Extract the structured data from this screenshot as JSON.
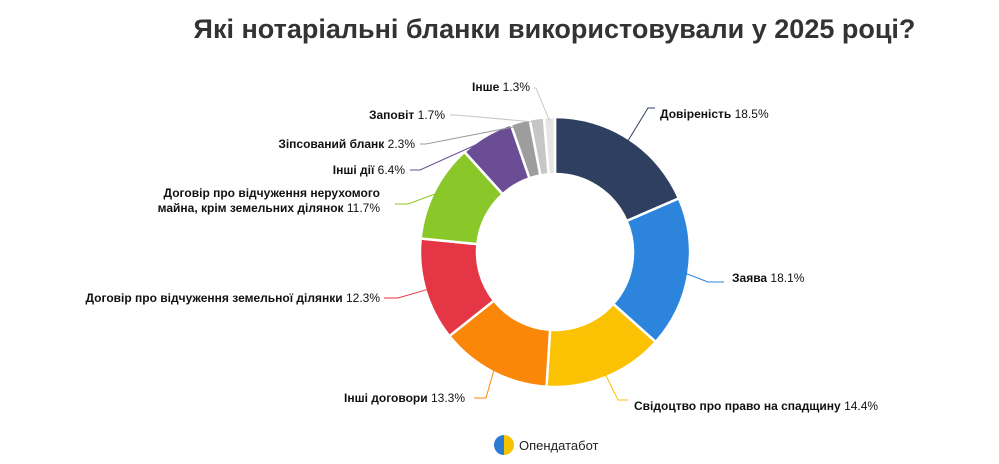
{
  "title": "Які нотаріальні бланки використовували у 2025 році?",
  "brand": "Опендатабот",
  "chart_data": {
    "type": "pie",
    "variant": "donut",
    "title": "Які нотаріальні бланки використовували у 2025 році?",
    "slices": [
      {
        "label": "Довіреність",
        "value": 18.5,
        "display": "18.5%",
        "color": "#2e3f5f"
      },
      {
        "label": "Заява",
        "value": 18.1,
        "display": "18.1%",
        "color": "#2d84dc"
      },
      {
        "label": "Свідоцтво про право на спадщину",
        "value": 14.4,
        "display": "14.4%",
        "color": "#fbc103"
      },
      {
        "label": "Інші договори",
        "value": 13.3,
        "display": "13.3%",
        "color": "#fb8709"
      },
      {
        "label": "Договір про відчуження земельної ділянки",
        "value": 12.3,
        "display": "12.3%",
        "color": "#e53646"
      },
      {
        "label": [
          "Договір про відчуження нерухомого",
          "майна, крім земельних ділянок"
        ],
        "value": 11.7,
        "display": "11.7%",
        "color": "#8ac82a"
      },
      {
        "label": "Інші дії",
        "value": 6.4,
        "display": "6.4%",
        "color": "#6a4d94"
      },
      {
        "label": "Зіпсований бланк",
        "value": 2.3,
        "display": "2.3%",
        "color": "#9d9d9d"
      },
      {
        "label": "Заповіт",
        "value": 1.7,
        "display": "1.7%",
        "color": "#c6c6c6"
      },
      {
        "label": "Інше",
        "value": 1.3,
        "display": "1.3%",
        "color": "#e6e6e6"
      }
    ],
    "legend": "none"
  }
}
